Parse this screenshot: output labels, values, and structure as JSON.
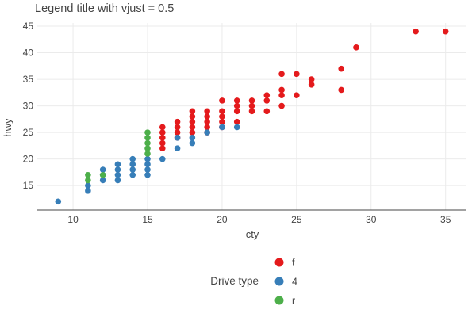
{
  "chart_data": {
    "type": "scatter",
    "title": "Legend title with vjust = 0.5",
    "xlabel": "cty",
    "ylabel": "hwy",
    "xlim": [
      7.6,
      36.4
    ],
    "ylim": [
      10.4,
      45.6
    ],
    "xticks": [
      10,
      15,
      20,
      25,
      30,
      35
    ],
    "yticks": [
      15,
      20,
      25,
      30,
      35,
      40,
      45
    ],
    "grid": true,
    "legend": {
      "title": "Drive type",
      "placement": "bottom",
      "entries": [
        "f",
        "4",
        "r"
      ]
    },
    "series": [
      {
        "name": "f",
        "color": "#e41a1c",
        "points": [
          [
            16,
            22
          ],
          [
            16,
            23
          ],
          [
            16,
            24
          ],
          [
            16,
            25
          ],
          [
            16,
            26
          ],
          [
            17,
            24
          ],
          [
            17,
            25
          ],
          [
            17,
            26
          ],
          [
            17,
            27
          ],
          [
            18,
            25
          ],
          [
            18,
            26
          ],
          [
            18,
            27
          ],
          [
            18,
            28
          ],
          [
            18,
            29
          ],
          [
            19,
            25
          ],
          [
            19,
            26
          ],
          [
            19,
            27
          ],
          [
            19,
            28
          ],
          [
            19,
            29
          ],
          [
            20,
            26
          ],
          [
            20,
            27
          ],
          [
            20,
            28
          ],
          [
            20,
            29
          ],
          [
            20,
            31
          ],
          [
            21,
            27
          ],
          [
            21,
            29
          ],
          [
            21,
            30
          ],
          [
            21,
            31
          ],
          [
            22,
            29
          ],
          [
            22,
            30
          ],
          [
            22,
            31
          ],
          [
            23,
            29
          ],
          [
            23,
            31
          ],
          [
            23,
            32
          ],
          [
            24,
            30
          ],
          [
            24,
            32
          ],
          [
            24,
            33
          ],
          [
            24,
            36
          ],
          [
            25,
            32
          ],
          [
            25,
            36
          ],
          [
            26,
            34
          ],
          [
            26,
            35
          ],
          [
            28,
            33
          ],
          [
            28,
            37
          ],
          [
            29,
            41
          ],
          [
            33,
            44
          ],
          [
            35,
            44
          ]
        ]
      },
      {
        "name": "4",
        "color": "#377eb8",
        "points": [
          [
            9,
            12
          ],
          [
            11,
            14
          ],
          [
            11,
            15
          ],
          [
            12,
            16
          ],
          [
            12,
            17
          ],
          [
            12,
            18
          ],
          [
            13,
            16
          ],
          [
            13,
            17
          ],
          [
            13,
            18
          ],
          [
            13,
            19
          ],
          [
            14,
            17
          ],
          [
            14,
            18
          ],
          [
            14,
            19
          ],
          [
            14,
            20
          ],
          [
            15,
            17
          ],
          [
            15,
            18
          ],
          [
            15,
            19
          ],
          [
            15,
            20
          ],
          [
            16,
            20
          ],
          [
            17,
            22
          ],
          [
            17,
            24
          ],
          [
            18,
            23
          ],
          [
            18,
            24
          ],
          [
            19,
            25
          ],
          [
            20,
            26
          ],
          [
            21,
            26
          ]
        ]
      },
      {
        "name": "r",
        "color": "#4daf4a",
        "points": [
          [
            11,
            16
          ],
          [
            11,
            17
          ],
          [
            12,
            17
          ],
          [
            15,
            21
          ],
          [
            15,
            22
          ],
          [
            15,
            23
          ],
          [
            15,
            24
          ],
          [
            15,
            25
          ]
        ]
      }
    ]
  }
}
